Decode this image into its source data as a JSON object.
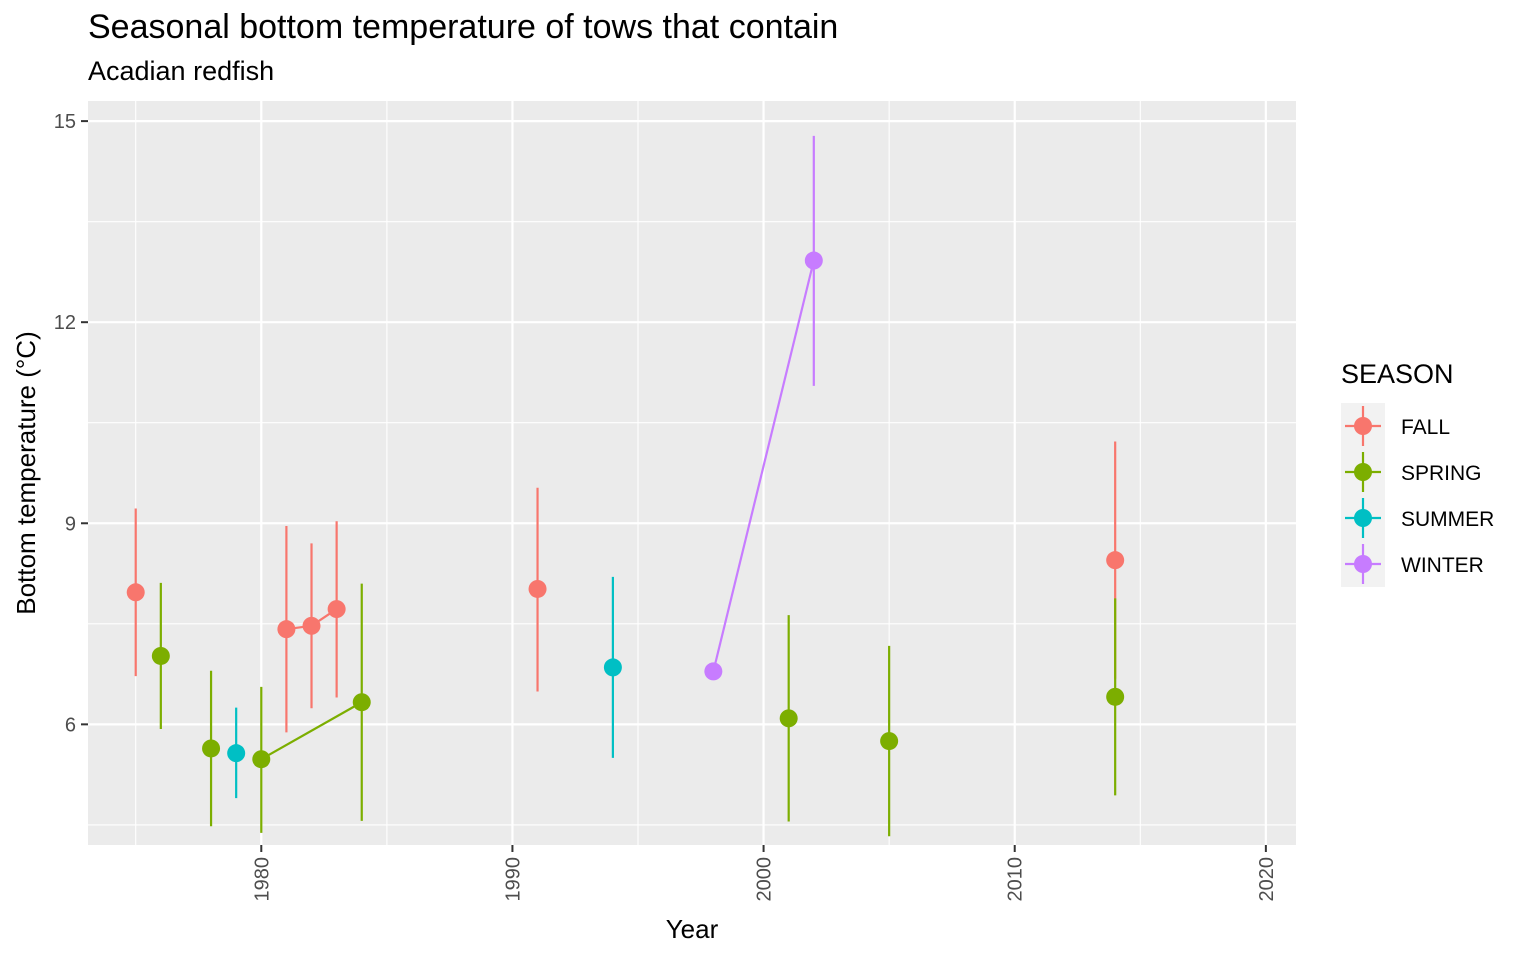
{
  "chart_data": {
    "type": "scatter",
    "title": "Seasonal bottom temperature of tows that contain",
    "subtitle": "Acadian redfish",
    "xlabel": "Year",
    "ylabel": "Bottom temperature (°C)",
    "xlim": [
      1973.1,
      2021.2
    ],
    "ylim": [
      4.2,
      15.3
    ],
    "x_ticks": [
      1980,
      1990,
      2000,
      2010,
      2020
    ],
    "x_tick_labels": [
      "1980",
      "1990",
      "2000",
      "2010",
      "2020"
    ],
    "y_ticks": [
      6,
      9,
      12,
      15
    ],
    "y_tick_labels": [
      "6",
      "9",
      "12",
      "15"
    ],
    "grid": true,
    "legend": {
      "title": "SEASON",
      "position": "right"
    },
    "series": [
      {
        "name": "FALL",
        "color": "#F8766D",
        "points": [
          {
            "x": 1975,
            "y": 7.97,
            "ymin": 6.72,
            "ymax": 9.22
          },
          {
            "x": 1981,
            "y": 7.42,
            "ymin": 5.88,
            "ymax": 8.96
          },
          {
            "x": 1982,
            "y": 7.47,
            "ymin": 6.24,
            "ymax": 8.7
          },
          {
            "x": 1983,
            "y": 7.72,
            "ymin": 6.4,
            "ymax": 9.03
          },
          {
            "x": 1991,
            "y": 8.02,
            "ymin": 6.49,
            "ymax": 9.53
          },
          {
            "x": 2014,
            "y": 8.45,
            "ymin": 6.68,
            "ymax": 10.22
          }
        ]
      },
      {
        "name": "SPRING",
        "color": "#7CAE00",
        "points": [
          {
            "x": 1976,
            "y": 7.02,
            "ymin": 5.93,
            "ymax": 8.11
          },
          {
            "x": 1978,
            "y": 5.64,
            "ymin": 4.48,
            "ymax": 6.8
          },
          {
            "x": 1980,
            "y": 5.48,
            "ymin": 4.38,
            "ymax": 6.56
          },
          {
            "x": 1984,
            "y": 6.33,
            "ymin": 4.56,
            "ymax": 8.1
          },
          {
            "x": 2001,
            "y": 6.09,
            "ymin": 4.55,
            "ymax": 7.63
          },
          {
            "x": 2005,
            "y": 5.75,
            "ymin": 4.33,
            "ymax": 7.17
          },
          {
            "x": 2014,
            "y": 6.41,
            "ymin": 4.94,
            "ymax": 7.88
          }
        ]
      },
      {
        "name": "SUMMER",
        "color": "#00BFC4",
        "points": [
          {
            "x": 1979,
            "y": 5.57,
            "ymin": 4.9,
            "ymax": 6.25
          },
          {
            "x": 1994,
            "y": 6.85,
            "ymin": 5.5,
            "ymax": 8.2
          }
        ]
      },
      {
        "name": "WINTER",
        "color": "#C77CFF",
        "points": [
          {
            "x": 1998,
            "y": 6.79,
            "ymin": 6.79,
            "ymax": 6.79
          },
          {
            "x": 2002,
            "y": 12.92,
            "ymin": 11.05,
            "ymax": 14.78
          }
        ]
      }
    ]
  },
  "colors": {
    "panel_background": "#EBEBEB",
    "grid_major": "#FFFFFF",
    "legend_key_background": "#F2F2F2"
  }
}
